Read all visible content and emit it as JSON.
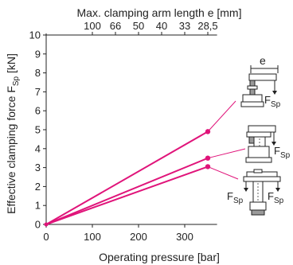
{
  "chart_data": {
    "type": "line",
    "xlabel": "Operating pressure [bar]",
    "ylabel": "Effective clamping force F",
    "ylabel_sub": "Sp",
    "ylabel_unit": " [kN]",
    "top_axis_label": "Max. clamping arm length e [mm]",
    "xlim": [
      0,
      370
    ],
    "ylim": [
      0,
      10
    ],
    "x_ticks": [
      0,
      100,
      200,
      300
    ],
    "y_ticks": [
      0,
      1,
      2,
      3,
      4,
      5,
      6,
      7,
      8,
      9,
      10
    ],
    "top_ticks": [
      {
        "label": "100",
        "x": 100
      },
      {
        "label": "66",
        "x": 150
      },
      {
        "label": "50",
        "x": 200
      },
      {
        "label": "40",
        "x": 250
      },
      {
        "label": "33",
        "x": 300
      },
      {
        "label": "28,5",
        "x": 350
      }
    ],
    "grid": false,
    "line_color": "#e0147a",
    "series": [
      {
        "x": [
          0,
          350
        ],
        "y": [
          0,
          4.9
        ]
      },
      {
        "x": [
          0,
          350
        ],
        "y": [
          0,
          3.5
        ]
      },
      {
        "x": [
          0,
          350
        ],
        "y": [
          0,
          3.05
        ]
      }
    ]
  },
  "illustrations": {
    "e_label": "e",
    "force_label": "F",
    "force_sub": "Sp"
  }
}
